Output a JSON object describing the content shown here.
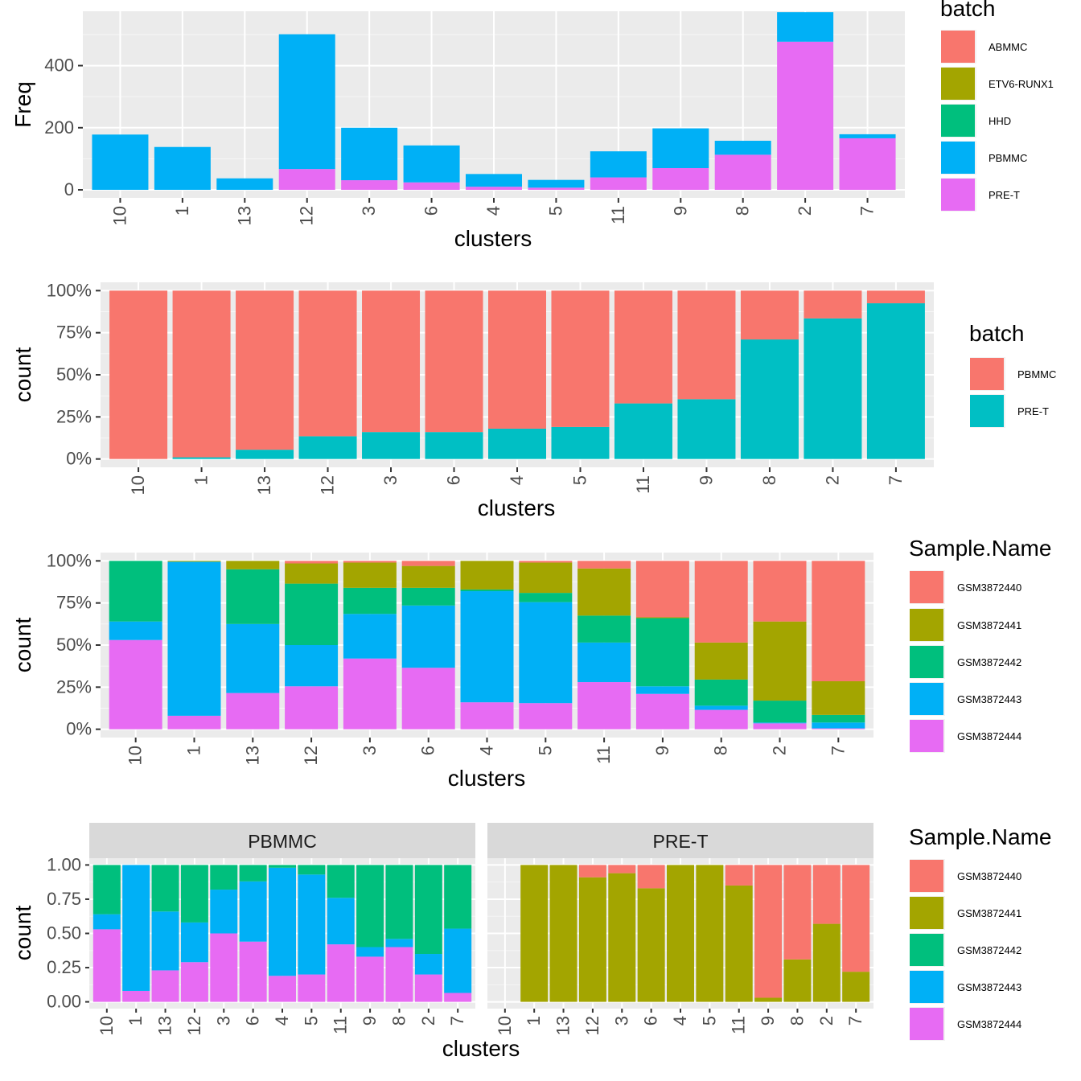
{
  "colors": {
    "panel_bg": "#EBEBEB",
    "grid_major": "#FFFFFF",
    "strip_bg": "#D9D9D9",
    "tick": "#333333",
    "ABMMC": "#F8766D",
    "ETV6-RUNX1": "#A3A500",
    "HHD": "#00BF7D",
    "PBMMC": "#00B0F6",
    "PRE-T": "#E76BF3",
    "PBMMC_2level": "#F8766D",
    "PRE-T_2level": "#00BFC4",
    "GSM3872440": "#F8766D",
    "GSM3872441": "#A3A500",
    "GSM3872442": "#00BF7D",
    "GSM3872443": "#00B0F6",
    "GSM3872444": "#E76BF3"
  },
  "chart_data": [
    {
      "type": "bar",
      "stacked": true,
      "position": "stack",
      "categories": [
        "10",
        "1",
        "13",
        "12",
        "3",
        "6",
        "4",
        "5",
        "11",
        "9",
        "8",
        "2",
        "7"
      ],
      "xlabel": "clusters",
      "ylabel": "Freq",
      "ylim": [
        0,
        575
      ],
      "y_ticks": [
        0,
        200,
        400
      ],
      "y_tick_labels": [
        "0",
        "200",
        "400"
      ],
      "grid": true,
      "legend_title": "batch",
      "legend_position": "right",
      "legend": [
        "ABMMC",
        "ETV6-RUNX1",
        "HHD",
        "PBMMC",
        "PRE-T"
      ],
      "series": [
        {
          "name": "PRE-T",
          "values": [
            0,
            0,
            0,
            67,
            31,
            24,
            10,
            7,
            40,
            70,
            113,
            477,
            166
          ]
        },
        {
          "name": "PBMMC",
          "values": [
            178,
            138,
            37,
            434,
            169,
            119,
            41,
            25,
            84,
            128,
            45,
            95,
            13
          ]
        }
      ]
    },
    {
      "type": "bar",
      "stacked": true,
      "position": "fill",
      "categories": [
        "10",
        "1",
        "13",
        "12",
        "3",
        "6",
        "4",
        "5",
        "11",
        "9",
        "8",
        "2",
        "7"
      ],
      "xlabel": "clusters",
      "ylabel": "count",
      "ylim": [
        0,
        1
      ],
      "y_ticks": [
        0,
        0.25,
        0.5,
        0.75,
        1
      ],
      "y_tick_labels": [
        "0%",
        "25%",
        "50%",
        "75%",
        "100%"
      ],
      "grid": true,
      "legend_title": "batch",
      "legend_position": "right",
      "legend": [
        "PBMMC",
        "PRE-T"
      ],
      "series": [
        {
          "name": "PRE-T",
          "values": [
            0,
            0.01,
            0.055,
            0.135,
            0.16,
            0.16,
            0.18,
            0.19,
            0.33,
            0.355,
            0.71,
            0.835,
            0.925
          ]
        },
        {
          "name": "PBMMC",
          "values": [
            1,
            0.99,
            0.945,
            0.865,
            0.84,
            0.84,
            0.82,
            0.81,
            0.67,
            0.645,
            0.29,
            0.165,
            0.075
          ]
        }
      ]
    },
    {
      "type": "bar",
      "stacked": true,
      "position": "fill",
      "categories": [
        "10",
        "1",
        "13",
        "12",
        "3",
        "6",
        "4",
        "5",
        "11",
        "9",
        "8",
        "2",
        "7"
      ],
      "xlabel": "clusters",
      "ylabel": "count",
      "ylim": [
        0,
        1
      ],
      "y_ticks": [
        0,
        0.25,
        0.5,
        0.75,
        1
      ],
      "y_tick_labels": [
        "0%",
        "25%",
        "50%",
        "75%",
        "100%"
      ],
      "grid": true,
      "legend_title": "Sample.Name",
      "legend_position": "right",
      "legend": [
        "GSM3872440",
        "GSM3872441",
        "GSM3872442",
        "GSM3872443",
        "GSM3872444"
      ],
      "series": [
        {
          "name": "GSM3872444",
          "values": [
            0.53,
            0.08,
            0.215,
            0.255,
            0.42,
            0.365,
            0.16,
            0.155,
            0.28,
            0.21,
            0.115,
            0.035,
            0.005
          ]
        },
        {
          "name": "GSM3872443",
          "values": [
            0.11,
            0.915,
            0.41,
            0.245,
            0.265,
            0.37,
            0.66,
            0.6,
            0.235,
            0.045,
            0.025,
            0.005,
            0.035
          ]
        },
        {
          "name": "GSM3872442",
          "values": [
            0.36,
            0.0,
            0.325,
            0.365,
            0.155,
            0.105,
            0.01,
            0.055,
            0.16,
            0.405,
            0.155,
            0.13,
            0.045
          ]
        },
        {
          "name": "GSM3872441",
          "values": [
            0,
            0.005,
            0.05,
            0.12,
            0.15,
            0.13,
            0.17,
            0.18,
            0.28,
            0.005,
            0.22,
            0.47,
            0.2
          ]
        },
        {
          "name": "GSM3872440",
          "values": [
            0,
            0,
            0,
            0.015,
            0.01,
            0.03,
            0,
            0.01,
            0.045,
            0.335,
            0.485,
            0.36,
            0.715
          ]
        }
      ]
    },
    {
      "type": "bar",
      "stacked": true,
      "position": "fill",
      "faceted": true,
      "categories": [
        "10",
        "1",
        "13",
        "12",
        "3",
        "6",
        "4",
        "5",
        "11",
        "9",
        "8",
        "2",
        "7"
      ],
      "xlabel": "clusters",
      "ylabel": "count",
      "ylim": [
        0,
        1
      ],
      "y_ticks": [
        0,
        0.25,
        0.5,
        0.75,
        1
      ],
      "y_tick_labels": [
        "0.00",
        "0.25",
        "0.50",
        "0.75",
        "1.00"
      ],
      "grid": true,
      "legend_title": "Sample.Name",
      "legend_position": "right",
      "legend": [
        "GSM3872440",
        "GSM3872441",
        "GSM3872442",
        "GSM3872443",
        "GSM3872444"
      ],
      "facets": [
        {
          "strip": "PBMMC",
          "series": [
            {
              "name": "GSM3872444",
              "values": [
                0.53,
                0.08,
                0.23,
                0.29,
                0.5,
                0.44,
                0.19,
                0.2,
                0.42,
                0.33,
                0.4,
                0.2,
                0.065
              ]
            },
            {
              "name": "GSM3872443",
              "values": [
                0.11,
                0.92,
                0.43,
                0.29,
                0.32,
                0.44,
                0.79,
                0.73,
                0.34,
                0.07,
                0.06,
                0.15,
                0.47
              ]
            },
            {
              "name": "GSM3872442",
              "values": [
                0.36,
                0,
                0.34,
                0.42,
                0.18,
                0.12,
                0.02,
                0.07,
                0.24,
                0.6,
                0.54,
                0.65,
                0.465
              ]
            }
          ]
        },
        {
          "strip": "PRE-T",
          "present": [
            false,
            true,
            true,
            true,
            true,
            true,
            true,
            true,
            true,
            true,
            true,
            true,
            true
          ],
          "series": [
            {
              "name": "GSM3872441",
              "values": [
                0,
                1,
                1,
                0.91,
                0.94,
                0.83,
                1,
                1,
                0.85,
                0.03,
                0.31,
                0.57,
                0.22
              ]
            },
            {
              "name": "GSM3872440",
              "values": [
                0,
                0,
                0,
                0.09,
                0.06,
                0.17,
                0,
                0,
                0.15,
                0.97,
                0.69,
                0.43,
                0.78
              ]
            }
          ]
        }
      ]
    }
  ]
}
